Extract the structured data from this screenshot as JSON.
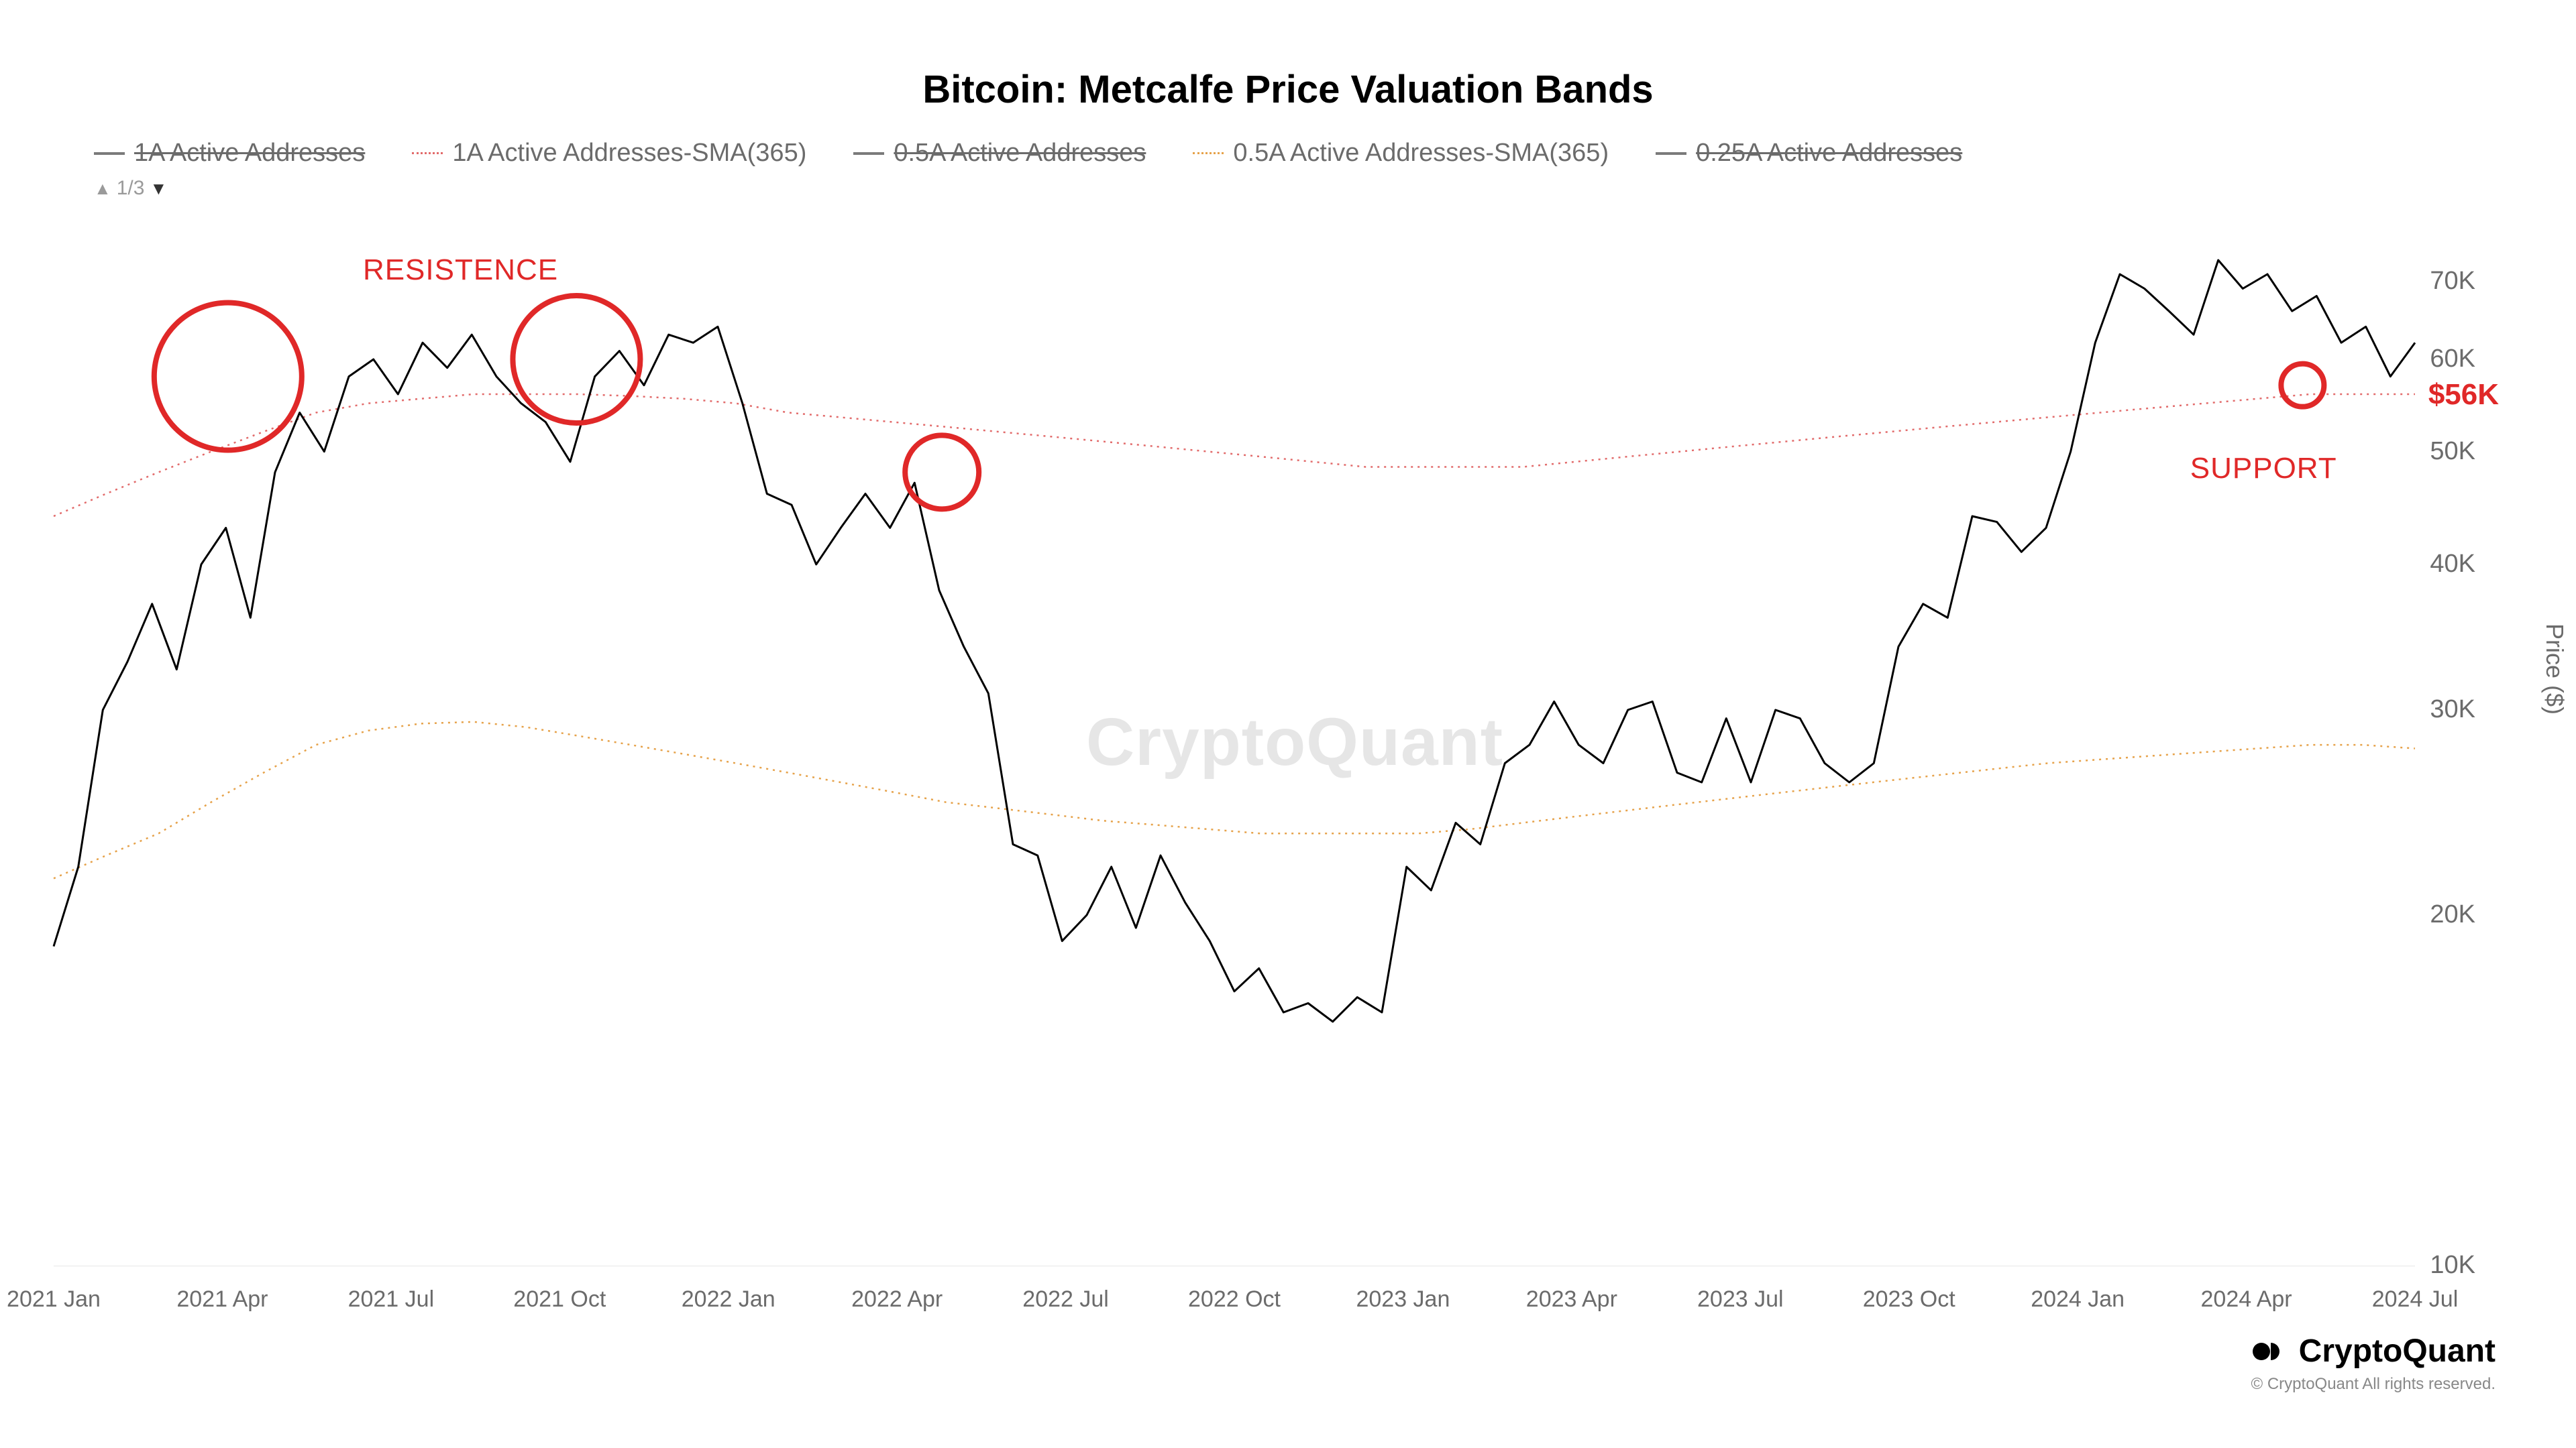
{
  "chart": {
    "title": "Bitcoin: Metcalfe Price Valuation Bands",
    "type": "line",
    "background_color": "#ffffff",
    "watermark": "CryptoQuant",
    "watermark_color": "#d9d9d9",
    "legend_items": [
      {
        "label": "1A Active Addresses",
        "color": "#7a7a7a",
        "struck": true,
        "dotted": false
      },
      {
        "label": "1A Active Addresses-SMA(365)",
        "color": "#e26b6b",
        "struck": false,
        "dotted": true
      },
      {
        "label": "0.5A Active Addresses",
        "color": "#7a7a7a",
        "struck": true,
        "dotted": false
      },
      {
        "label": "0.5A Active Addresses-SMA(365)",
        "color": "#e6a24a",
        "struck": false,
        "dotted": true
      },
      {
        "label": "0.25A Active Addresses",
        "color": "#7a7a7a",
        "struck": true,
        "dotted": false
      }
    ],
    "pager": {
      "text": "1/3"
    },
    "y_axis": {
      "title": "Price ($)",
      "scale": "log",
      "ticks": [
        {
          "label": "10K",
          "value": 10000
        },
        {
          "label": "20K",
          "value": 20000
        },
        {
          "label": "30K",
          "value": 30000
        },
        {
          "label": "40K",
          "value": 40000
        },
        {
          "label": "50K",
          "value": 50000
        },
        {
          "label": "60K",
          "value": 60000
        },
        {
          "label": "70K",
          "value": 70000
        }
      ],
      "min": 10000,
      "max": 78000
    },
    "x_axis": {
      "tick_labels": [
        "2021 Jan",
        "2021 Apr",
        "2021 Jul",
        "2021 Oct",
        "2022 Jan",
        "2022 Apr",
        "2022 Jul",
        "2022 Oct",
        "2023 Jan",
        "2023 Apr",
        "2023 Jul",
        "2023 Oct",
        "2024 Jan",
        "2024 Apr",
        "2024 Jul"
      ],
      "min_index": 0,
      "max_index": 42
    },
    "series": {
      "price": {
        "color": "#000000",
        "width": 3,
        "values": [
          18800,
          22000,
          30000,
          33000,
          37000,
          32500,
          40000,
          43000,
          36000,
          48000,
          54000,
          50000,
          58000,
          60000,
          56000,
          62000,
          59000,
          63000,
          58000,
          55000,
          53000,
          49000,
          58000,
          61000,
          57000,
          63000,
          62000,
          64000,
          55000,
          46000,
          45000,
          40000,
          43000,
          46000,
          43000,
          47000,
          38000,
          34000,
          31000,
          23000,
          22500,
          19000,
          20000,
          22000,
          19500,
          22500,
          20500,
          19000,
          17200,
          18000,
          16500,
          16800,
          16200,
          17000,
          16500,
          22000,
          21000,
          24000,
          23000,
          27000,
          28000,
          30500,
          28000,
          27000,
          30000,
          30500,
          26500,
          26000,
          29500,
          26000,
          30000,
          29500,
          27000,
          26000,
          27000,
          34000,
          37000,
          36000,
          44000,
          43500,
          41000,
          43000,
          50000,
          62000,
          71000,
          69000,
          66000,
          63000,
          73000,
          69000,
          71000,
          66000,
          68000,
          62000,
          64000,
          58000,
          62000
        ]
      },
      "sma_1a": {
        "color": "#e26b6b",
        "width": 2.5,
        "dotted": true,
        "values": [
          44000,
          46000,
          48000,
          50000,
          52000,
          54000,
          55000,
          55500,
          56000,
          56000,
          56000,
          55800,
          55500,
          55000,
          54000,
          53500,
          53000,
          52500,
          52000,
          51500,
          51000,
          50500,
          50000,
          49500,
          49000,
          48500,
          48500,
          48500,
          48500,
          49000,
          49500,
          50000,
          50500,
          51000,
          51500,
          52000,
          52500,
          53000,
          53500,
          54000,
          54500,
          55000,
          55500,
          56000,
          56000,
          56000
        ]
      },
      "sma_05a": {
        "color": "#e6a24a",
        "width": 2.5,
        "dotted": true,
        "values": [
          21500,
          22500,
          23500,
          25000,
          26500,
          28000,
          28800,
          29200,
          29300,
          29000,
          28500,
          28000,
          27500,
          27000,
          26500,
          26000,
          25500,
          25000,
          24700,
          24400,
          24100,
          23900,
          23700,
          23500,
          23500,
          23500,
          23500,
          23700,
          24000,
          24300,
          24600,
          24900,
          25200,
          25500,
          25800,
          26100,
          26400,
          26700,
          27000,
          27200,
          27400,
          27600,
          27800,
          28000,
          28000,
          27800
        ]
      }
    },
    "annotations": {
      "resistance_label": "RESISTENCE",
      "support_label": "SUPPORT",
      "price_marker": "$56K",
      "circles": [
        {
          "cx_month": 3.1,
          "cy_price": 58000,
          "r": 110,
          "stroke": "#e02828"
        },
        {
          "cx_month": 9.3,
          "cy_price": 60000,
          "r": 95,
          "stroke": "#e02828"
        },
        {
          "cx_month": 15.8,
          "cy_price": 48000,
          "r": 55,
          "stroke": "#e02828"
        },
        {
          "cx_month": 40.0,
          "cy_price": 57000,
          "r": 32,
          "stroke": "#e02828"
        }
      ]
    },
    "gridline_color": "#e8e8e8"
  },
  "footer": {
    "brand": "CryptoQuant",
    "copyright": "© CryptoQuant All rights reserved."
  }
}
